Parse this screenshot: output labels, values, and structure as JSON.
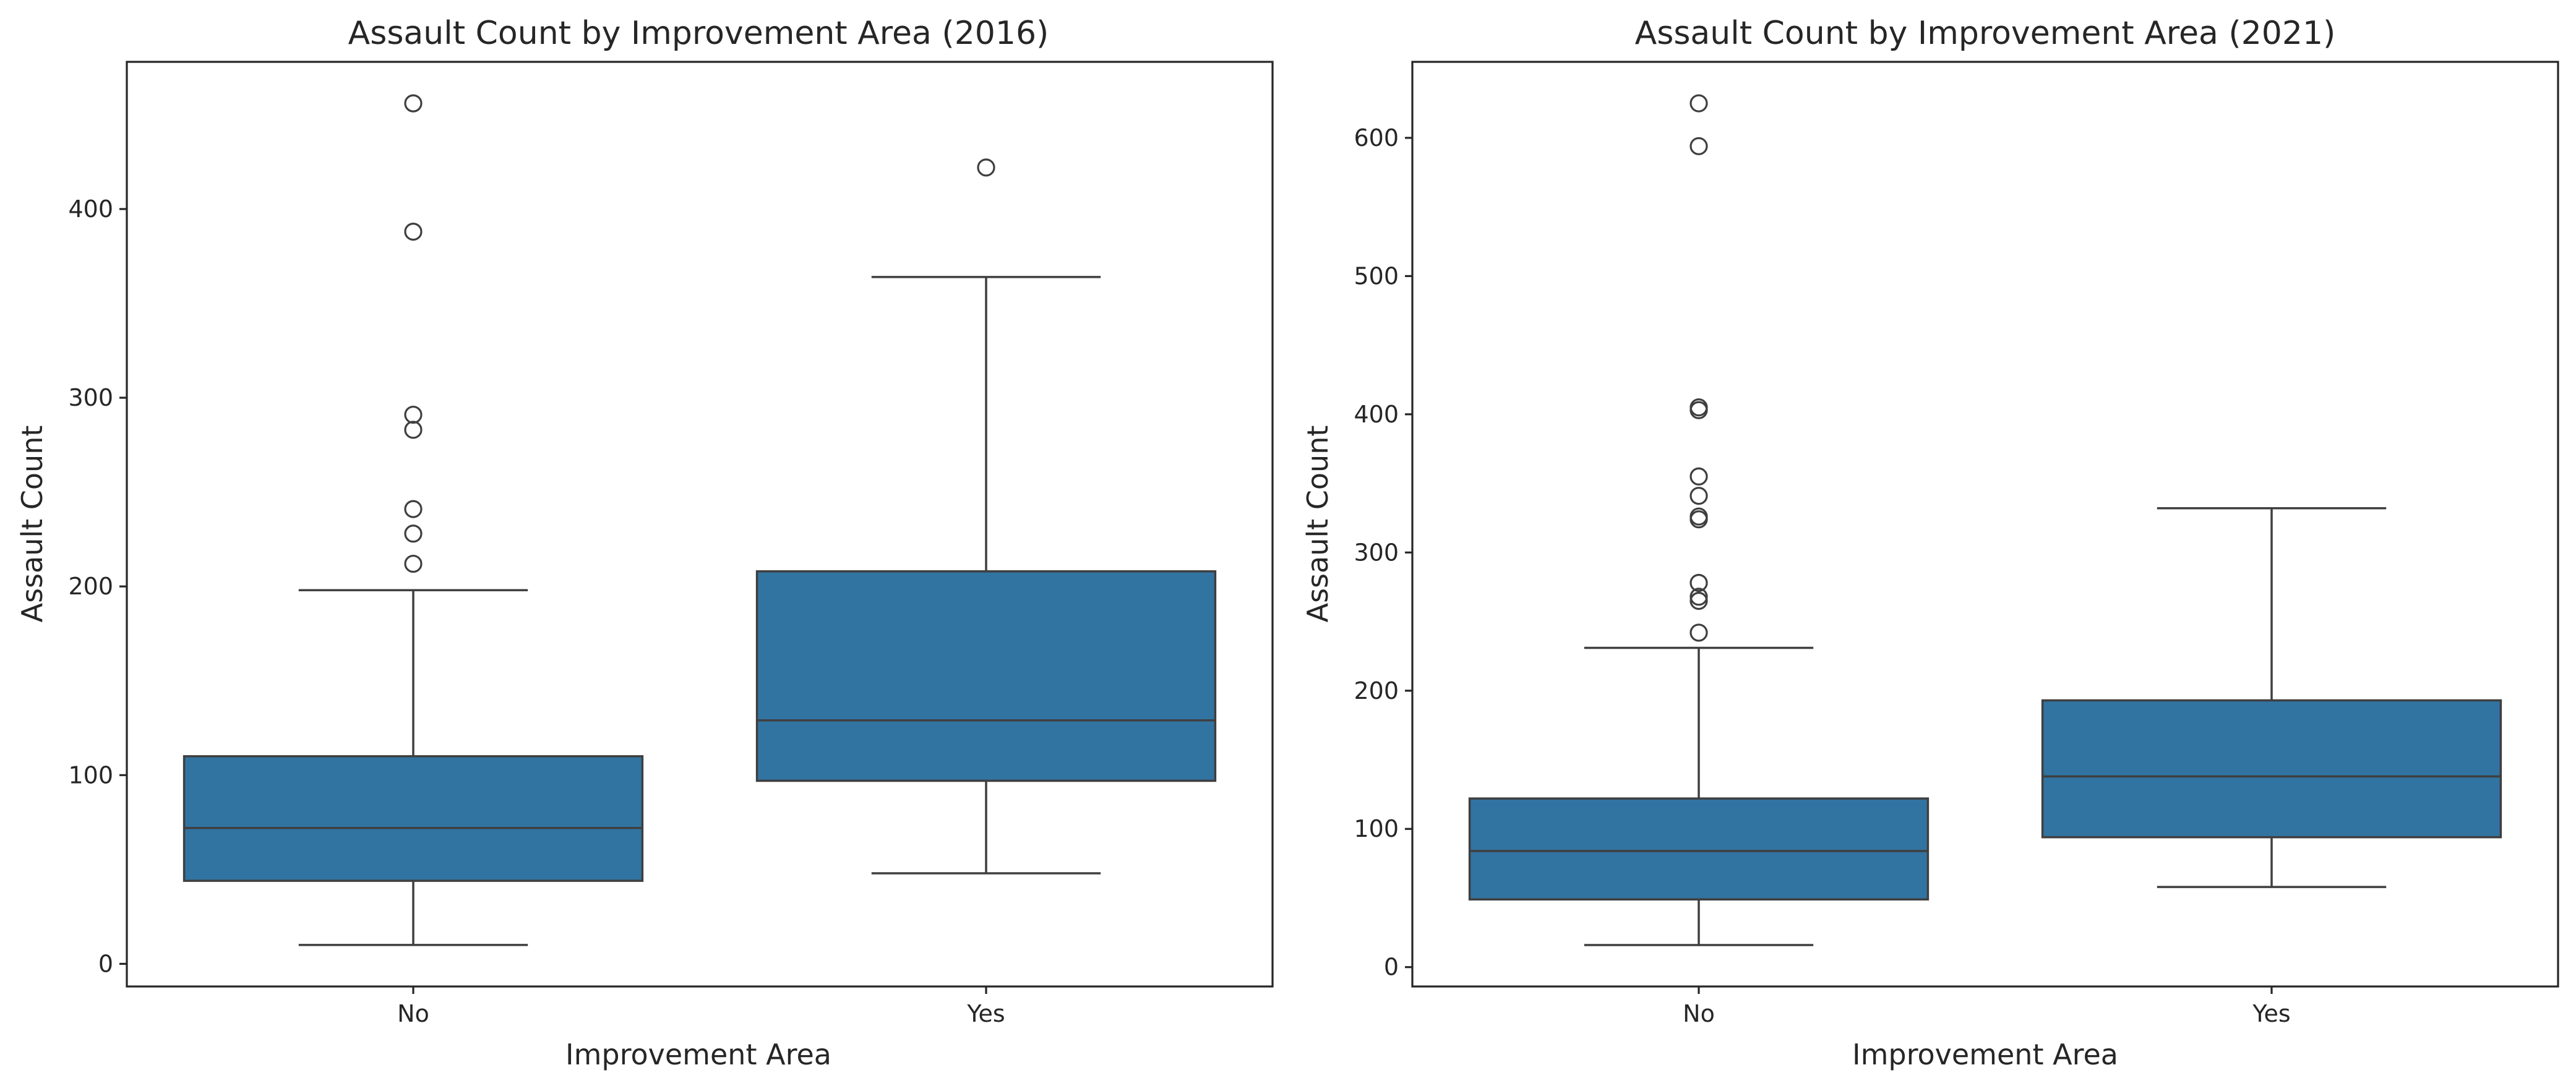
{
  "chart_data": [
    {
      "type": "box",
      "title": "Assault Count by Improvement Area (2016)",
      "xlabel": "Improvement Area",
      "ylabel": "Assault Count",
      "categories": [
        "No",
        "Yes"
      ],
      "ylim": [
        -12,
        478
      ],
      "yticks": [
        0,
        100,
        200,
        300,
        400
      ],
      "grid": false,
      "boxes": [
        {
          "category": "No",
          "whisker_low": 10,
          "q1": 44,
          "median": 72,
          "q3": 110,
          "whisker_high": 198,
          "outliers": [
            212,
            228,
            241,
            283,
            291,
            388,
            456
          ]
        },
        {
          "category": "Yes",
          "whisker_low": 48,
          "q1": 97,
          "median": 129,
          "q3": 208,
          "whisker_high": 364,
          "outliers": [
            422
          ]
        }
      ]
    },
    {
      "type": "box",
      "title": "Assault Count by Improvement Area (2021)",
      "xlabel": "Improvement Area",
      "ylabel": "Assault Count",
      "categories": [
        "No",
        "Yes"
      ],
      "ylim": [
        -14,
        655
      ],
      "yticks": [
        0,
        100,
        200,
        300,
        400,
        500,
        600
      ],
      "grid": false,
      "boxes": [
        {
          "category": "No",
          "whisker_low": 16,
          "q1": 49,
          "median": 84,
          "q3": 122,
          "whisker_high": 231,
          "outliers": [
            242,
            265,
            268,
            278,
            324,
            326,
            341,
            355,
            403,
            405,
            594,
            625
          ]
        },
        {
          "category": "Yes",
          "whisker_low": 58,
          "q1": 94,
          "median": 138,
          "q3": 193,
          "whisker_high": 332,
          "outliers": []
        }
      ]
    }
  ],
  "colors": {
    "box_fill": "#3274a1",
    "edge": "#3f3f3f",
    "text": "#262626"
  }
}
